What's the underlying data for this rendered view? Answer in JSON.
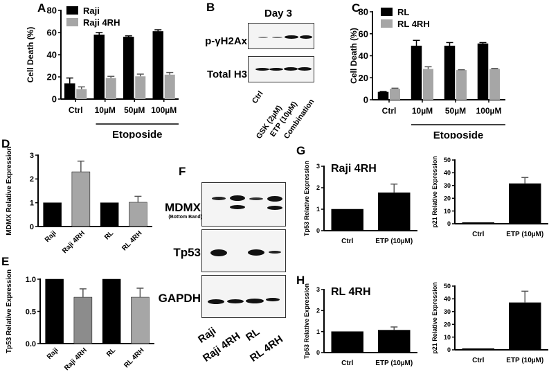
{
  "chart_data": [
    {
      "panel": "A",
      "type": "bar",
      "categories": [
        "Ctrl",
        "10µM",
        "50µM",
        "100µM"
      ],
      "group_label": "Etoposide",
      "ylabel": "Cell Death (%)",
      "ylim": [
        0,
        80
      ],
      "yticks": [
        0,
        20,
        40,
        60,
        80
      ],
      "series": [
        {
          "name": "Raji",
          "color": "#000000",
          "values": [
            14,
            58,
            56,
            61
          ],
          "errors": [
            5,
            2,
            1,
            1.5
          ]
        },
        {
          "name": "Raji 4RH",
          "color": "#a6a6a6",
          "values": [
            9,
            19,
            20.5,
            22
          ],
          "errors": [
            2,
            1.5,
            2,
            2
          ]
        }
      ]
    },
    {
      "panel": "C",
      "type": "bar",
      "categories": [
        "Ctrl",
        "10µM",
        "50µM",
        "100µM"
      ],
      "group_label": "Etoposide",
      "ylabel": "Cell Death (%)",
      "ylim": [
        0,
        80
      ],
      "yticks": [
        0,
        20,
        40,
        60,
        80
      ],
      "series": [
        {
          "name": "RL",
          "color": "#000000",
          "values": [
            7,
            49,
            49,
            51
          ],
          "errors": [
            0.5,
            5,
            3,
            1
          ]
        },
        {
          "name": "RL 4RH",
          "color": "#a6a6a6",
          "values": [
            10,
            28,
            27,
            28
          ],
          "errors": [
            0.5,
            2,
            0.3,
            0.5
          ]
        }
      ]
    },
    {
      "panel": "D",
      "type": "bar",
      "categories": [
        "Raji",
        "Raji 4RH",
        "RL",
        "RL 4RH"
      ],
      "ylabel": "MDMX Relative Expression",
      "ylim": [
        0,
        3
      ],
      "yticks": [
        0,
        1,
        2,
        3
      ],
      "values": [
        1.0,
        2.3,
        1.0,
        1.02
      ],
      "errors": [
        0,
        0.45,
        0,
        0.25
      ],
      "colors": [
        "#000000",
        "#a6a6a6",
        "#000000",
        "#a6a6a6"
      ]
    },
    {
      "panel": "E",
      "type": "bar",
      "categories": [
        "Raji",
        "Raji 4RH",
        "RL",
        "RL 4RH"
      ],
      "ylabel": "Tp53 Relative Expression",
      "ylim": [
        0,
        1.0
      ],
      "yticks": [
        0.0,
        0.5,
        1.0
      ],
      "values": [
        1.0,
        0.72,
        1.0,
        0.72
      ],
      "errors": [
        0,
        0.13,
        0,
        0.14
      ],
      "colors": [
        "#000000",
        "#8c8c8c",
        "#000000",
        "#a6a6a6"
      ]
    },
    {
      "panel": "G",
      "type": "bar",
      "title": "Raji 4RH",
      "subplots": [
        {
          "categories": [
            "Ctrl",
            "ETP (10µM)"
          ],
          "ylabel": "Tp53 Relative Expression",
          "ylim": [
            0,
            3
          ],
          "yticks": [
            0,
            1,
            2,
            3
          ],
          "values": [
            1.0,
            1.77
          ],
          "errors": [
            0,
            0.4
          ]
        },
        {
          "categories": [
            "Ctrl",
            "ETP (10µM)"
          ],
          "ylabel": "p21 Relative Expression",
          "ylim": [
            0,
            50
          ],
          "yticks": [
            0,
            10,
            20,
            30,
            40,
            50
          ],
          "values": [
            1,
            31.5
          ],
          "errors": [
            0,
            4.8
          ]
        }
      ]
    },
    {
      "panel": "H",
      "type": "bar",
      "title": "RL 4RH",
      "subplots": [
        {
          "categories": [
            "Ctrl",
            "ETP (10µM)"
          ],
          "ylabel": "Tp53 Relative Expression",
          "ylim": [
            0,
            3
          ],
          "yticks": [
            0,
            1,
            2,
            3
          ],
          "values": [
            1.0,
            1.07
          ],
          "errors": [
            0,
            0.15
          ]
        },
        {
          "categories": [
            "Ctrl",
            "ETP (10µM)"
          ],
          "ylabel": "p21 Relative Expression",
          "ylim": [
            0,
            50
          ],
          "yticks": [
            0,
            10,
            20,
            30,
            40,
            50
          ],
          "values": [
            1,
            37
          ],
          "errors": [
            0,
            9
          ]
        }
      ]
    }
  ],
  "panels": {
    "A": {
      "label": "A"
    },
    "B": {
      "label": "B",
      "title": "Day 3",
      "rows": [
        "p-γH2Ax",
        "Total H3"
      ],
      "lanes": [
        "Ctrl",
        "GSK (2µM)",
        "ETP (10µM)",
        "Combination"
      ]
    },
    "C": {
      "label": "C"
    },
    "D": {
      "label": "D"
    },
    "E": {
      "label": "E"
    },
    "F": {
      "label": "F",
      "rows": [
        "MDMX",
        "Tp53",
        "GAPDH"
      ],
      "row_sublabel": "(Bottom Band)",
      "lanes": [
        "Raji",
        "Raji 4RH",
        "RL",
        "RL 4RH"
      ]
    },
    "G": {
      "label": "G",
      "title": "Raji 4RH"
    },
    "H": {
      "label": "H",
      "title": "RL 4RH"
    }
  }
}
